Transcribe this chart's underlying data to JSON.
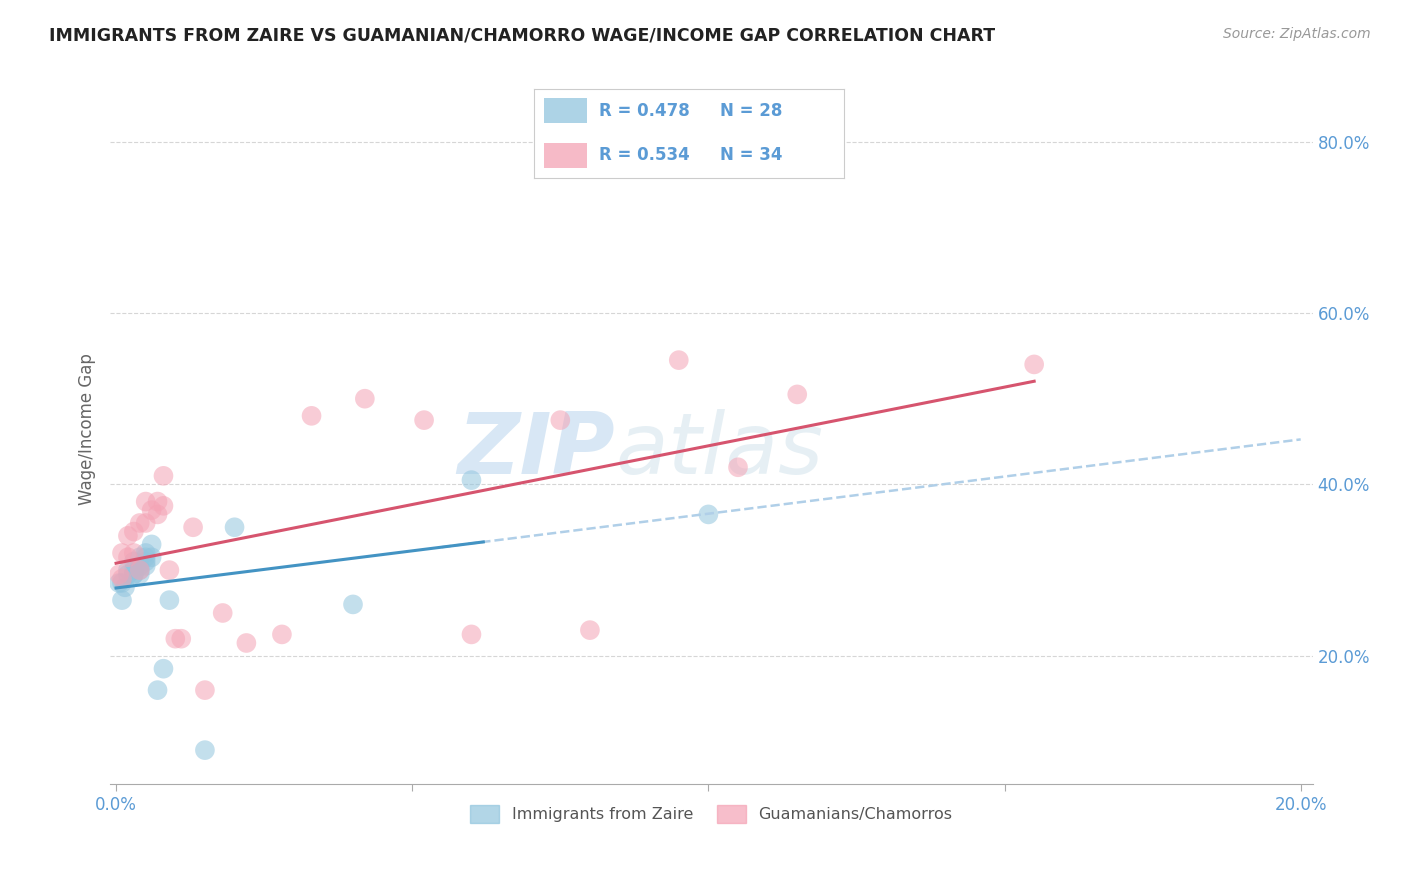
{
  "title": "IMMIGRANTS FROM ZAIRE VS GUAMANIAN/CHAMORRO WAGE/INCOME GAP CORRELATION CHART",
  "source": "Source: ZipAtlas.com",
  "ylabel": "Wage/Income Gap",
  "legend_label1": "Immigrants from Zaire",
  "legend_label2": "Guamanians/Chamorros",
  "R1": 0.478,
  "N1": 28,
  "R2": 0.534,
  "N2": 34,
  "color1": "#92c5de",
  "color2": "#f4a3b5",
  "regression_color1": "#4393c3",
  "regression_color2": "#d6546e",
  "dashed_color": "#b0cfe8",
  "xlim": [
    -0.001,
    0.202
  ],
  "ylim": [
    0.05,
    0.88
  ],
  "yticks": [
    0.2,
    0.4,
    0.6,
    0.8
  ],
  "ytick_labels": [
    "20.0%",
    "40.0%",
    "60.0%",
    "80.0%"
  ],
  "xticks": [
    0.0,
    0.05,
    0.1,
    0.15,
    0.2
  ],
  "xtick_labels": [
    "0.0%",
    "",
    "",
    "",
    "20.0%"
  ],
  "background_color": "#ffffff",
  "grid_color": "#cccccc",
  "title_color": "#222222",
  "axis_label_color": "#5b9bd5",
  "watermark_zip": "ZIP",
  "watermark_atlas": "atlas",
  "zaire_x": [
    0.0005,
    0.001,
    0.001,
    0.0015,
    0.002,
    0.002,
    0.003,
    0.003,
    0.003,
    0.003,
    0.004,
    0.004,
    0.004,
    0.004,
    0.005,
    0.005,
    0.005,
    0.005,
    0.006,
    0.006,
    0.007,
    0.008,
    0.009,
    0.015,
    0.02,
    0.04,
    0.06,
    0.1
  ],
  "zaire_y": [
    0.285,
    0.265,
    0.285,
    0.28,
    0.295,
    0.3,
    0.295,
    0.3,
    0.295,
    0.31,
    0.295,
    0.3,
    0.305,
    0.315,
    0.305,
    0.31,
    0.315,
    0.32,
    0.315,
    0.33,
    0.16,
    0.185,
    0.265,
    0.09,
    0.35,
    0.26,
    0.405,
    0.365
  ],
  "guam_x": [
    0.0005,
    0.001,
    0.001,
    0.002,
    0.002,
    0.003,
    0.003,
    0.004,
    0.004,
    0.005,
    0.005,
    0.006,
    0.007,
    0.007,
    0.008,
    0.008,
    0.009,
    0.01,
    0.011,
    0.013,
    0.015,
    0.018,
    0.022,
    0.028,
    0.033,
    0.042,
    0.052,
    0.06,
    0.075,
    0.08,
    0.095,
    0.105,
    0.115,
    0.155
  ],
  "guam_y": [
    0.295,
    0.29,
    0.32,
    0.315,
    0.34,
    0.32,
    0.345,
    0.3,
    0.355,
    0.355,
    0.38,
    0.37,
    0.365,
    0.38,
    0.375,
    0.41,
    0.3,
    0.22,
    0.22,
    0.35,
    0.16,
    0.25,
    0.215,
    0.225,
    0.48,
    0.5,
    0.475,
    0.225,
    0.475,
    0.23,
    0.545,
    0.42,
    0.505,
    0.54
  ]
}
